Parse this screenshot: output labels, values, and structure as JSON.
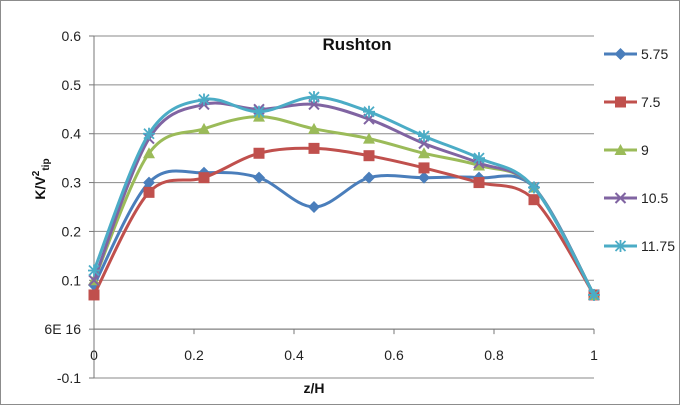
{
  "chart_data": {
    "type": "line",
    "title": "Rushton",
    "xlabel": "z/H",
    "ylabel": {
      "base": "K/V",
      "sup": "2",
      "sub": "tip"
    },
    "xlim": [
      0,
      1
    ],
    "ylim": [
      -0.1,
      0.6
    ],
    "x_ticks": [
      {
        "value": 0,
        "label": "0"
      },
      {
        "value": 0.2,
        "label": "0.2"
      },
      {
        "value": 0.4,
        "label": "0.4"
      },
      {
        "value": 0.6,
        "label": "0.6"
      },
      {
        "value": 0.8,
        "label": "0.8"
      },
      {
        "value": 1,
        "label": "1"
      }
    ],
    "y_ticks": [
      {
        "value": -0.1,
        "label": "-0.1"
      },
      {
        "value": 0,
        "label": "6E 16"
      },
      {
        "value": 0.1,
        "label": "0.1"
      },
      {
        "value": 0.2,
        "label": "0.2"
      },
      {
        "value": 0.3,
        "label": "0.3"
      },
      {
        "value": 0.4,
        "label": "0.4"
      },
      {
        "value": 0.5,
        "label": "0.5"
      },
      {
        "value": 0.6,
        "label": "0.6"
      }
    ],
    "grid": "horizontal",
    "legend_position": "right",
    "x": [
      0,
      0.11,
      0.22,
      0.33,
      0.44,
      0.55,
      0.66,
      0.77,
      0.88,
      1.0
    ],
    "series": [
      {
        "name": "5.75",
        "color": "#4a7ebb",
        "marker": "diamond",
        "values": [
          0.09,
          0.3,
          0.32,
          0.31,
          0.25,
          0.31,
          0.31,
          0.31,
          0.29,
          0.07
        ]
      },
      {
        "name": "7.5",
        "color": "#c0504d",
        "marker": "square",
        "values": [
          0.07,
          0.28,
          0.31,
          0.36,
          0.37,
          0.355,
          0.33,
          0.3,
          0.265,
          0.07
        ]
      },
      {
        "name": "9",
        "color": "#9bbb59",
        "marker": "triangle",
        "values": [
          0.1,
          0.36,
          0.41,
          0.435,
          0.41,
          0.39,
          0.36,
          0.335,
          0.29,
          0.07
        ]
      },
      {
        "name": "10.5",
        "color": "#8064a2",
        "marker": "x",
        "values": [
          0.1,
          0.39,
          0.46,
          0.45,
          0.46,
          0.43,
          0.38,
          0.34,
          0.29,
          0.07
        ]
      },
      {
        "name": "11.75",
        "color": "#4bacc6",
        "marker": "star",
        "values": [
          0.12,
          0.4,
          0.47,
          0.445,
          0.475,
          0.445,
          0.395,
          0.35,
          0.29,
          0.07
        ]
      }
    ]
  }
}
